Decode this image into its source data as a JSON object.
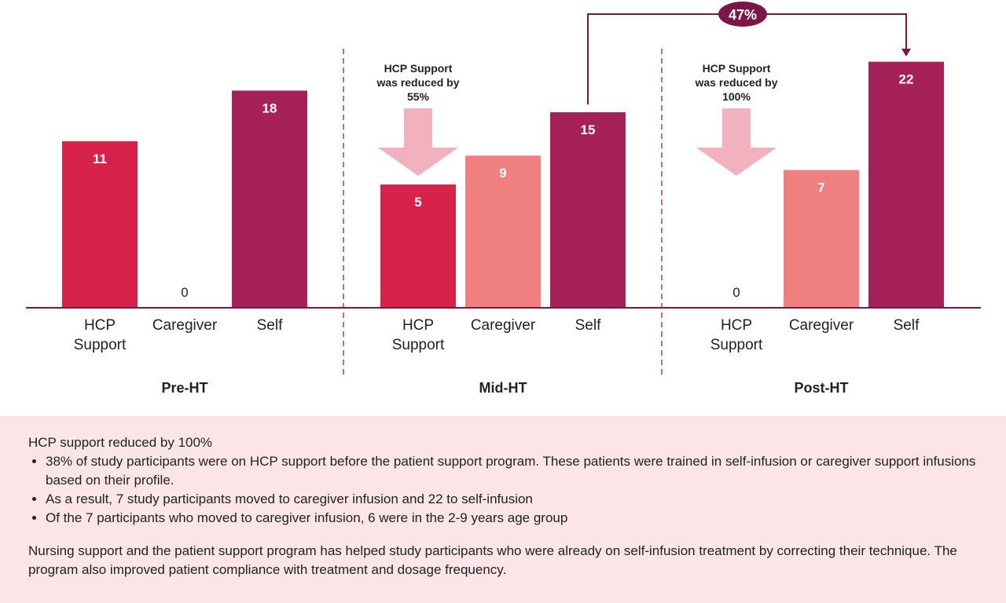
{
  "chart_data": {
    "type": "bar",
    "groups": [
      "Pre-HT",
      "Mid-HT",
      "Post-HT"
    ],
    "categories": [
      "HCP Support",
      "Caregiver",
      "Self"
    ],
    "values": [
      [
        11,
        0,
        18
      ],
      [
        5,
        9,
        15
      ],
      [
        0,
        7,
        22
      ]
    ],
    "colors": {
      "HCP Support": "#D7234A",
      "Caregiver": "#F07F80",
      "Self": "#A6215A"
    },
    "annotations": [
      {
        "group": "Mid-HT",
        "text": [
          "HCP Support",
          "was reduced by",
          "55%"
        ]
      },
      {
        "group": "Post-HT",
        "text": [
          "HCP Support",
          "was reduced by",
          "100%"
        ]
      }
    ],
    "connector": {
      "from": "Mid-HT Self",
      "to": "Post-HT Self",
      "label": "47%"
    },
    "arrow_color": "#F2B1BE",
    "accent_color": "#7A1748",
    "grid": false
  },
  "note": {
    "heading": "HCP support reduced by 100%",
    "bullets": [
      "38% of study participants were on HCP support before the patient support program. These patients were trained in self-infusion or caregiver support infusions based on their profile.",
      "As a result, 7 study participants moved to caregiver infusion and 22 to self-infusion",
      "Of the 7 participants who moved to caregiver infusion, 6 were in the 2-9 years age group"
    ],
    "paragraph": "Nursing support and the patient support program has helped study participants who were already on self-infusion treatment by correcting their technique. The program also improved patient compliance with treatment and dosage frequency."
  }
}
